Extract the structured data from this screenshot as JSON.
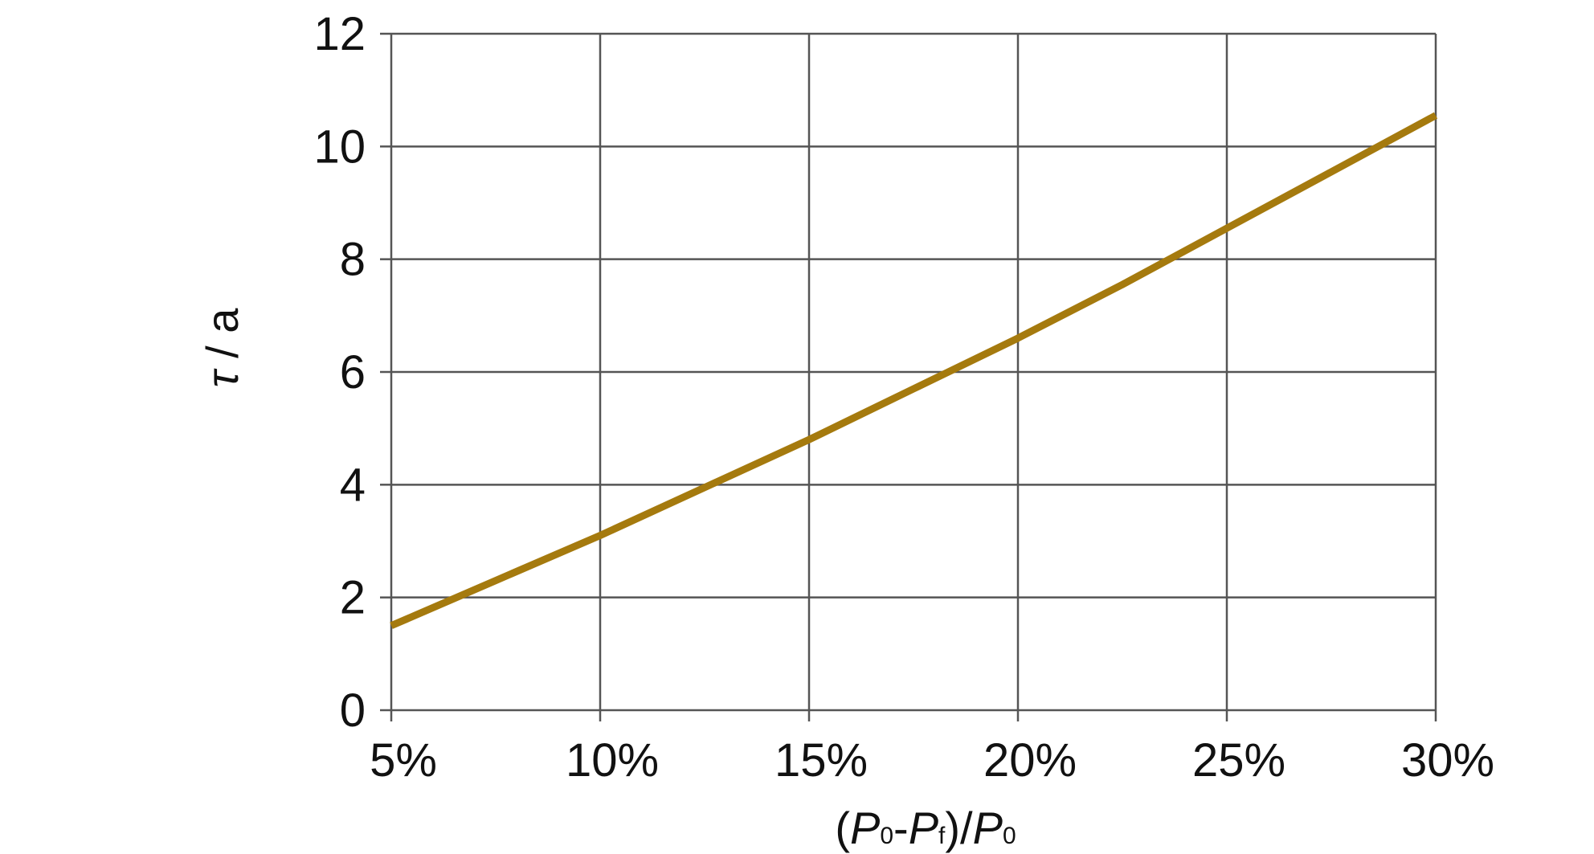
{
  "chart_data": {
    "type": "line",
    "title": "",
    "xlabel": {
      "open_paren": "(",
      "p1": "P",
      "p1_sub": "0",
      "dash": "-",
      "p2": "P",
      "p2_sub": "f",
      "close_slash": ")/",
      "p3": "P",
      "p3_sub": "0"
    },
    "ylabel": {
      "symbol": "τ",
      "rest": " / a"
    },
    "x_ticks": [
      5,
      10,
      15,
      20,
      25,
      30
    ],
    "x_tick_labels": [
      "5%",
      "10%",
      "15%",
      "20%",
      "25%",
      "30%"
    ],
    "y_ticks": [
      0,
      2,
      4,
      6,
      8,
      10,
      12
    ],
    "y_tick_labels": [
      "0",
      "2",
      "4",
      "6",
      "8",
      "10",
      "12"
    ],
    "xlim": [
      5,
      30
    ],
    "ylim": [
      0,
      12
    ],
    "grid": true,
    "legend": "none",
    "series": [
      {
        "color": "#a57a0e",
        "x": [
          5,
          7.5,
          10,
          12.5,
          15,
          17.5,
          20,
          22.5,
          25,
          27.5,
          30
        ],
        "y": [
          1.5,
          2.3,
          3.1,
          3.95,
          4.8,
          5.7,
          6.6,
          7.55,
          8.55,
          9.55,
          10.55
        ]
      }
    ]
  }
}
